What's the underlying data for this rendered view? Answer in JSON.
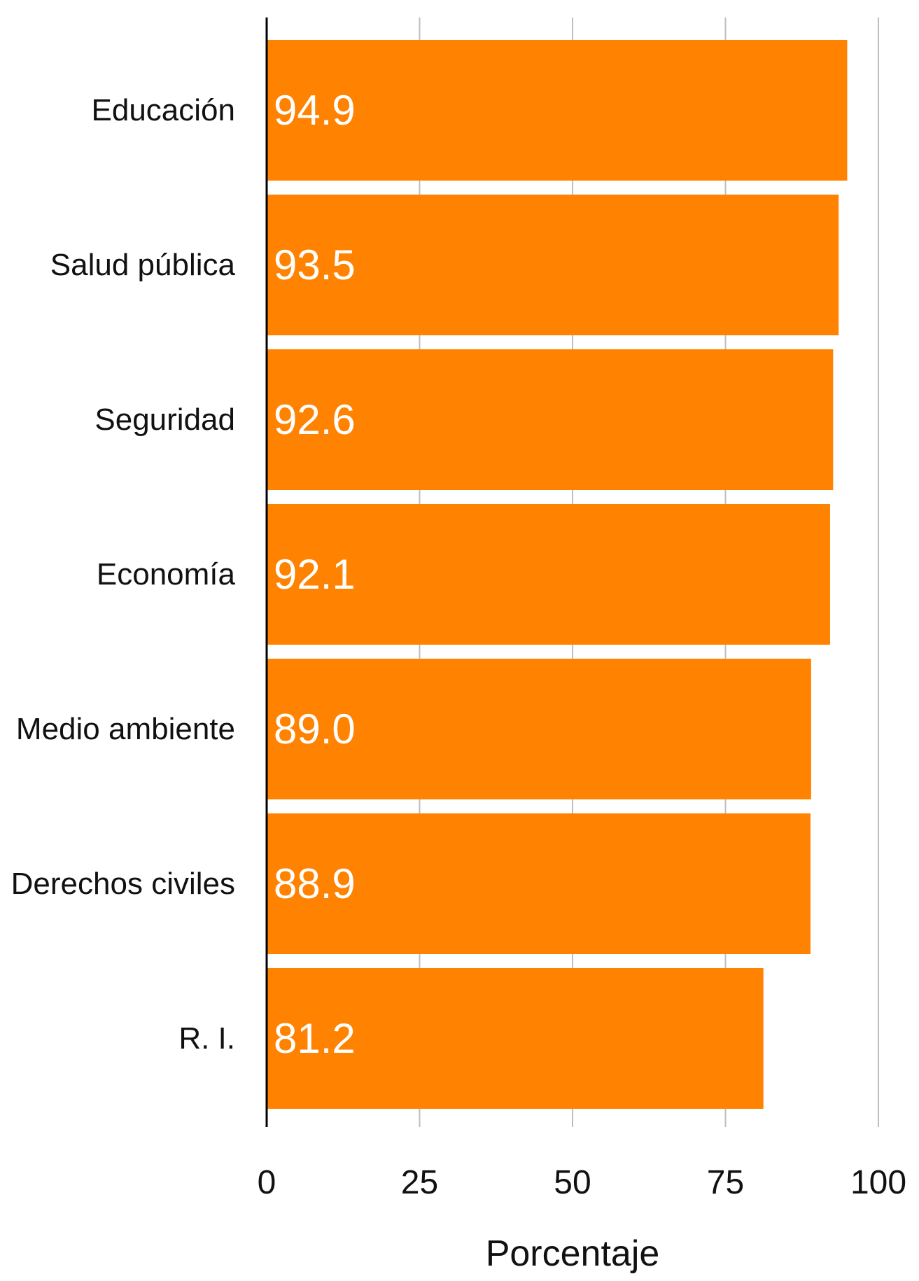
{
  "chart_data": {
    "type": "bar",
    "orientation": "horizontal",
    "categories": [
      "Educación",
      "Salud pública",
      "Seguridad",
      "Economía",
      "Medio ambiente",
      "Derechos civiles",
      "R. I."
    ],
    "values": [
      94.9,
      93.5,
      92.6,
      92.1,
      89.0,
      88.9,
      81.2
    ],
    "value_labels": [
      "94.9",
      "93.5",
      "92.6",
      "92.1",
      "89.0",
      "88.9",
      "81.2"
    ],
    "xlabel": "Porcentaje",
    "ylabel": "",
    "xlim": [
      0,
      100
    ],
    "xticks": [
      0,
      25,
      50,
      75,
      100
    ],
    "xtick_labels": [
      "0",
      "25",
      "50",
      "75",
      "100"
    ],
    "grid": "vertical",
    "legend": "none",
    "colors": {
      "bar": "#FF8200",
      "grid": "#BEBEBE",
      "axis": "#000000",
      "value_text": "#FFFFFF"
    }
  }
}
